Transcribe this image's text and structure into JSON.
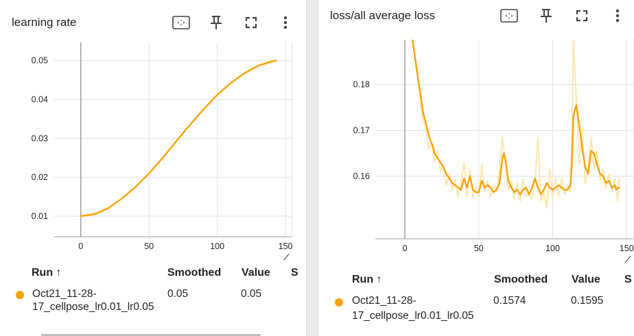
{
  "colors": {
    "series": "#f5a30a",
    "series_raw": "#fde7b0",
    "grid": "#e0e0e0",
    "axis": "#9e9e9e"
  },
  "icons": [
    "fit-domain-icon",
    "pin-icon",
    "fullscreen-icon",
    "more-vert-icon"
  ],
  "panels": [
    {
      "title": "learning rate",
      "table": {
        "headers": {
          "run": "Run ↑",
          "smoothed": "Smoothed",
          "value": "Value",
          "extra": "S"
        },
        "row": {
          "run_line1": "Oct21_11-28-",
          "run_line2": "17_cellpose_lr0.01_lr0.05",
          "smoothed": "0.05",
          "value": "0.05"
        }
      }
    },
    {
      "title": "loss/all average loss",
      "table": {
        "headers": {
          "run": "Run ↑",
          "smoothed": "Smoothed",
          "value": "Value",
          "extra": "S"
        },
        "row": {
          "run_line1": "Oct21_11-28-",
          "run_line2": "17_cellpose_lr0.01_lr0.05",
          "smoothed": "0.1574",
          "value": "0.1595"
        }
      }
    }
  ],
  "chart_data": [
    {
      "type": "line",
      "title": "learning rate",
      "xlabel": "",
      "ylabel": "",
      "xlim": [
        -20,
        155
      ],
      "ylim": [
        0.0047,
        0.0547
      ],
      "x_ticks": [
        0,
        50,
        100,
        150
      ],
      "y_ticks": [
        0.01,
        0.02,
        0.03,
        0.04,
        0.05
      ],
      "x_tick_labels": [
        "0",
        "50",
        "100",
        "150"
      ],
      "y_tick_labels": [
        "0.01",
        "0.02",
        "0.03",
        "0.04",
        "0.05"
      ],
      "series": [
        {
          "name": "Oct21_11-28-17_cellpose_lr0.01_lr0.05",
          "x": [
            0,
            10,
            20,
            30,
            40,
            50,
            60,
            70,
            80,
            90,
            100,
            110,
            120,
            130,
            140,
            143
          ],
          "y": [
            0.01,
            0.0105,
            0.012,
            0.0145,
            0.0175,
            0.021,
            0.025,
            0.0293,
            0.0335,
            0.0375,
            0.0412,
            0.0443,
            0.0468,
            0.0487,
            0.0498,
            0.05
          ]
        }
      ]
    },
    {
      "type": "line",
      "title": "loss/all average loss",
      "xlabel": "",
      "ylabel": "",
      "xlim": [
        -20,
        155
      ],
      "ylim": [
        0.1463,
        0.1898
      ],
      "x_ticks": [
        0,
        50,
        100,
        150
      ],
      "y_ticks": [
        0.16,
        0.17,
        0.18
      ],
      "x_tick_labels": [
        "0",
        "50",
        "100",
        "150"
      ],
      "y_tick_labels": [
        "0.16",
        "0.17",
        "0.18"
      ],
      "series": [
        {
          "name": "Oct21_11-28-17_cellpose_lr0.01_lr0.05 (smoothed)",
          "x": [
            5,
            7,
            9,
            11,
            12,
            13,
            15,
            17,
            19,
            20,
            22,
            24,
            26,
            28,
            30,
            32,
            34,
            36,
            38,
            40,
            42,
            44,
            46,
            48,
            50,
            52,
            54,
            56,
            58,
            60,
            62,
            64,
            66,
            67,
            68,
            70,
            72,
            74,
            76,
            78,
            80,
            82,
            84,
            86,
            88,
            90,
            92,
            94,
            96,
            98,
            100,
            102,
            104,
            106,
            108,
            110,
            112,
            113,
            114,
            115,
            116,
            118,
            120,
            122,
            124,
            126,
            128,
            130,
            132,
            134,
            136,
            138,
            140,
            142,
            143,
            144,
            145
          ],
          "y": [
            0.19,
            0.1855,
            0.181,
            0.177,
            0.1745,
            0.173,
            0.1705,
            0.168,
            0.1665,
            0.165,
            0.164,
            0.163,
            0.162,
            0.1605,
            0.1595,
            0.1585,
            0.158,
            0.1575,
            0.157,
            0.1595,
            0.1575,
            0.16,
            0.157,
            0.1565,
            0.1565,
            0.159,
            0.1575,
            0.158,
            0.1575,
            0.1565,
            0.157,
            0.1585,
            0.164,
            0.165,
            0.1635,
            0.159,
            0.1575,
            0.1565,
            0.157,
            0.156,
            0.157,
            0.1575,
            0.156,
            0.1575,
            0.1595,
            0.1575,
            0.156,
            0.157,
            0.1585,
            0.1575,
            0.157,
            0.1575,
            0.158,
            0.1575,
            0.157,
            0.157,
            0.158,
            0.163,
            0.173,
            0.1745,
            0.1755,
            0.171,
            0.166,
            0.162,
            0.1605,
            0.1655,
            0.165,
            0.1625,
            0.1605,
            0.16,
            0.1585,
            0.159,
            0.1575,
            0.158,
            0.157,
            0.1575,
            0.1574
          ]
        },
        {
          "name": "Oct21_11-28-17_cellpose_lr0.01_lr0.05 (raw)",
          "x": [
            5,
            8,
            10,
            12,
            14,
            16,
            18,
            20,
            22,
            24,
            26,
            28,
            30,
            32,
            34,
            36,
            38,
            40,
            42,
            44,
            46,
            48,
            50,
            52,
            54,
            56,
            58,
            60,
            62,
            64,
            66,
            68,
            70,
            72,
            74,
            76,
            78,
            80,
            82,
            84,
            86,
            88,
            90,
            92,
            94,
            96,
            98,
            100,
            102,
            104,
            106,
            108,
            110,
            112,
            113,
            114,
            116,
            118,
            120,
            122,
            124,
            126,
            128,
            130,
            132,
            134,
            136,
            138,
            140,
            142,
            144,
            145
          ],
          "y": [
            0.19,
            0.184,
            0.178,
            0.172,
            0.171,
            0.166,
            0.167,
            0.163,
            0.1655,
            0.161,
            0.1625,
            0.158,
            0.1605,
            0.157,
            0.1595,
            0.1555,
            0.1585,
            0.163,
            0.1555,
            0.1615,
            0.1555,
            0.1575,
            0.1555,
            0.1625,
            0.1565,
            0.159,
            0.1555,
            0.158,
            0.1565,
            0.1615,
            0.1685,
            0.1625,
            0.157,
            0.159,
            0.155,
            0.1585,
            0.1545,
            0.1595,
            0.1555,
            0.156,
            0.155,
            0.159,
            0.1685,
            0.1545,
            0.1565,
            0.153,
            0.1615,
            0.1555,
            0.1595,
            0.1555,
            0.1595,
            0.156,
            0.158,
            0.1565,
            0.1695,
            0.19,
            0.1765,
            0.1625,
            0.1705,
            0.1585,
            0.1615,
            0.1685,
            0.1615,
            0.1655,
            0.159,
            0.1615,
            0.1575,
            0.1605,
            0.1565,
            0.1595,
            0.1545,
            0.1595
          ]
        }
      ]
    }
  ]
}
